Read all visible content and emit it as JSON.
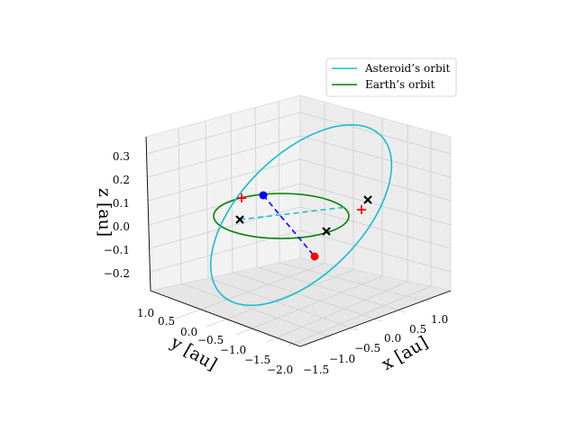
{
  "chart_data": {
    "type": "line",
    "projection": "3d",
    "series": [
      {
        "name": "Asteroid’s orbit",
        "color": "#17becf",
        "kind": "orbit"
      },
      {
        "name": "Earth’s orbit",
        "color": "#008000",
        "kind": "orbit"
      }
    ],
    "axes": {
      "x": {
        "label": "x [au]",
        "ticks": [
          "−1.5",
          "−1.0",
          "−0.5",
          "0.0",
          "0.5",
          "1.0"
        ]
      },
      "y": {
        "label": "y [au]",
        "ticks": [
          "1.0",
          "0.5",
          "0.0",
          "−0.5",
          "−1.0",
          "−1.5",
          "−2.0"
        ]
      },
      "z": {
        "label": "z [au]",
        "ticks": [
          "0.3",
          "0.2",
          "0.1",
          "0.0",
          "−0.1",
          "−0.2"
        ]
      }
    },
    "markers": [
      {
        "type": "point",
        "color": "#0000ff",
        "description": "asteroid position"
      },
      {
        "type": "point",
        "color": "#ff0000",
        "description": "projection below"
      },
      {
        "type": "x",
        "color": "#000000",
        "count": 3
      },
      {
        "type": "plus",
        "color": "#ff0000",
        "count": 2
      }
    ],
    "legend": {
      "position": "top-right"
    },
    "grid": true
  }
}
